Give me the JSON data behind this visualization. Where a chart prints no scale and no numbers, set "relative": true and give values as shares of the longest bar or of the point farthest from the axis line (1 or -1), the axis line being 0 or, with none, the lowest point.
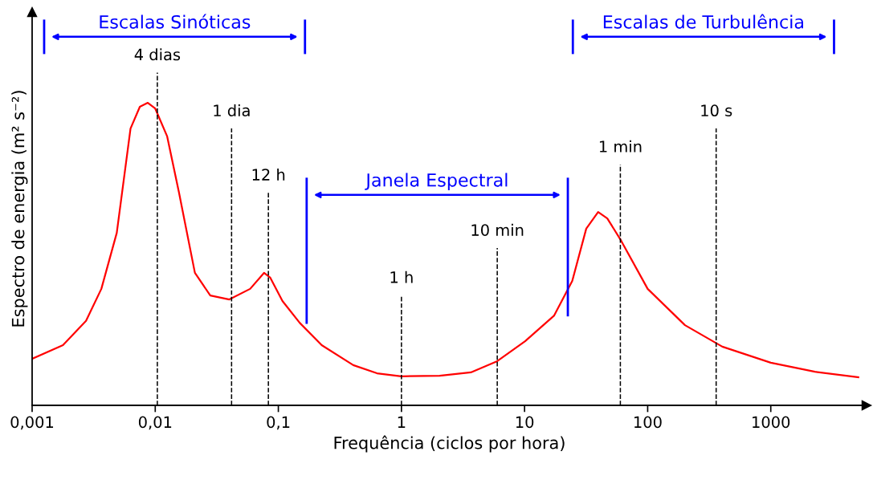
{
  "chart_data": {
    "type": "line",
    "relative": true,
    "xlabel": "Frequência (ciclos por hora)",
    "ylabel": "Espectro de energia (m² s⁻²)",
    "log": "x",
    "xlim": [
      0.001,
      6000
    ],
    "xticks": [
      {
        "value": 0.001,
        "label": "0,001"
      },
      {
        "value": 0.01,
        "label": "0,01"
      },
      {
        "value": 0.1,
        "label": "0,1"
      },
      1,
      10,
      100,
      1000
    ],
    "grid": false,
    "marker": "none",
    "line_style": "solid",
    "series": [
      {
        "color": "#ff0000",
        "x": [
          0.001,
          0.00178,
          0.00274,
          0.00365,
          0.00487,
          0.0063,
          0.0075,
          0.0087,
          0.01,
          0.0125,
          0.0156,
          0.021,
          0.028,
          0.04,
          0.059,
          0.0765,
          0.086,
          0.108,
          0.149,
          0.225,
          0.406,
          0.633,
          1,
          2.04,
          3.66,
          6.0,
          10.1,
          17.4,
          24.4,
          31.7,
          39.6,
          47,
          60.9,
          100,
          201,
          404,
          1000,
          2286,
          5140
        ],
        "values": [
          0.154,
          0.199,
          0.279,
          0.385,
          0.57,
          0.915,
          0.987,
          1.0,
          0.981,
          0.889,
          0.703,
          0.438,
          0.363,
          0.35,
          0.385,
          0.438,
          0.422,
          0.345,
          0.273,
          0.199,
          0.133,
          0.106,
          0.096,
          0.098,
          0.109,
          0.146,
          0.212,
          0.297,
          0.411,
          0.584,
          0.639,
          0.618,
          0.544,
          0.385,
          0.265,
          0.194,
          0.141,
          0.111,
          0.093
        ]
      }
    ],
    "ref_lines": [
      {
        "axis": "x",
        "value": 0.0104,
        "label": "4 dias",
        "color": "#000000",
        "line_style": "dashed"
      },
      {
        "axis": "x",
        "value": 0.0417,
        "label": "1 dia",
        "color": "#000000",
        "line_style": "dashed"
      },
      {
        "axis": "x",
        "value": 0.083,
        "label": "12 h",
        "color": "#000000",
        "line_style": "dashed"
      },
      {
        "axis": "x",
        "value": 1,
        "label": "1 h",
        "color": "#000000",
        "line_style": "dashed"
      },
      {
        "axis": "x",
        "value": 6,
        "label": "10 min",
        "color": "#000000",
        "line_style": "dashed"
      },
      {
        "axis": "x",
        "value": 60,
        "label": "1 min",
        "color": "#000000",
        "line_style": "dashed"
      },
      {
        "axis": "x",
        "value": 360,
        "label": "10 s",
        "color": "#000000",
        "line_style": "dashed"
      }
    ],
    "annotations": [
      "Escalas Sinóticas",
      "Janela Espectral",
      "Escalas de Turbulência"
    ]
  }
}
